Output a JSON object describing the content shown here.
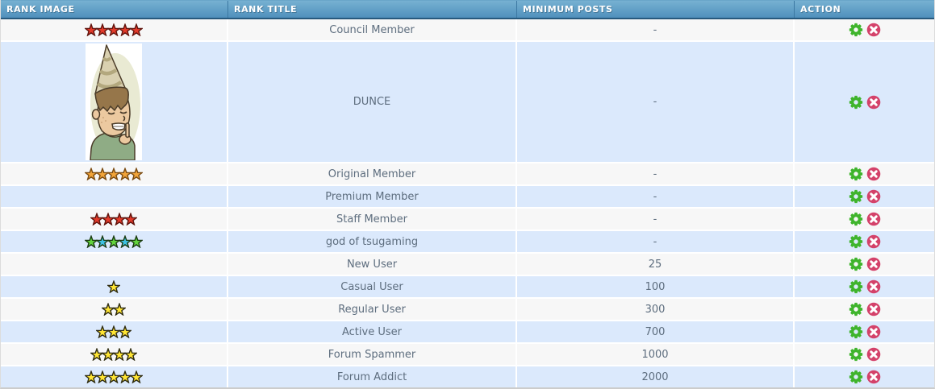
{
  "header": {
    "columns": [
      {
        "id": "rank_image",
        "label": "RANK IMAGE"
      },
      {
        "id": "rank_title",
        "label": "RANK TITLE"
      },
      {
        "id": "minimum_posts",
        "label": "MINIMUM POSTS"
      },
      {
        "id": "action",
        "label": "ACTION"
      }
    ]
  },
  "actions": [
    {
      "name": "edit",
      "icon": "gear-icon",
      "color": "#3fb42c"
    },
    {
      "name": "delete",
      "icon": "delete-x-icon",
      "color": "#d4426a",
      "glyph_color": "#ffffff"
    }
  ],
  "icons": {
    "edit": "gear-icon",
    "delete": "delete-x-icon",
    "star": "star-icon",
    "rank_picture": "dunce-image"
  },
  "rows": [
    {
      "title": "Council Member",
      "minimum_posts": "-",
      "rank_image": {
        "type": "stars",
        "count": 5,
        "colors": [
          "#e23a2a",
          "#e23a2a",
          "#e23a2a",
          "#e23a2a",
          "#e23a2a"
        ],
        "stroke": "#5f130c"
      }
    },
    {
      "title": "DUNCE",
      "minimum_posts": "-",
      "rank_image": {
        "type": "picture",
        "name": "dunce-cartoon"
      }
    },
    {
      "title": "Original Member",
      "minimum_posts": "-",
      "rank_image": {
        "type": "stars",
        "count": 5,
        "colors": [
          "#f1a43a",
          "#f1a43a",
          "#f1a43a",
          "#f1a43a",
          "#f1a43a"
        ],
        "stroke": "#7a4a10"
      }
    },
    {
      "title": "Premium Member",
      "minimum_posts": "-",
      "rank_image": {
        "type": "none"
      }
    },
    {
      "title": "Staff Member",
      "minimum_posts": "-",
      "rank_image": {
        "type": "stars",
        "count": 4,
        "colors": [
          "#e23a2a",
          "#e23a2a",
          "#e23a2a",
          "#e23a2a"
        ],
        "stroke": "#5f130c"
      }
    },
    {
      "title": "god of tsugaming",
      "minimum_posts": "-",
      "rank_image": {
        "type": "stars",
        "count": 5,
        "colors": [
          "#63d43d",
          "#3ec2e2",
          "#63d43d",
          "#3ec2e2",
          "#63d43d"
        ],
        "stroke": "#1a3a10"
      }
    },
    {
      "title": "New User",
      "minimum_posts": "25",
      "rank_image": {
        "type": "none"
      }
    },
    {
      "title": "Casual User",
      "minimum_posts": "100",
      "rank_image": {
        "type": "stars",
        "count": 1,
        "colors": [
          "#ffe534"
        ],
        "stroke": "#2e2b10"
      }
    },
    {
      "title": "Regular User",
      "minimum_posts": "300",
      "rank_image": {
        "type": "stars",
        "count": 2,
        "colors": [
          "#ffe534",
          "#ffe534"
        ],
        "stroke": "#2e2b10"
      }
    },
    {
      "title": "Active User",
      "minimum_posts": "700",
      "rank_image": {
        "type": "stars",
        "count": 3,
        "colors": [
          "#ffe534",
          "#ffe534",
          "#ffe534"
        ],
        "stroke": "#2e2b10"
      }
    },
    {
      "title": "Forum Spammer",
      "minimum_posts": "1000",
      "rank_image": {
        "type": "stars",
        "count": 4,
        "colors": [
          "#ffe534",
          "#ffe534",
          "#ffe534",
          "#ffe534"
        ],
        "stroke": "#2e2b10"
      }
    },
    {
      "title": "Forum Addict",
      "minimum_posts": "2000",
      "rank_image": {
        "type": "stars",
        "count": 5,
        "colors": [
          "#ffe534",
          "#ffe534",
          "#ffe534",
          "#ffe534",
          "#ffe534"
        ],
        "stroke": "#2e2b10"
      }
    }
  ],
  "colors": {
    "header_gradient_top": "#77b1d2",
    "header_gradient_bottom": "#4f90bc",
    "header_border_bottom": "#27597d",
    "header_text": "#ffffff",
    "row_light": "#f7f7f7",
    "row_blue": "#dbe9fc",
    "row_text": "#5d6d7e",
    "separator": "#ffffff"
  }
}
